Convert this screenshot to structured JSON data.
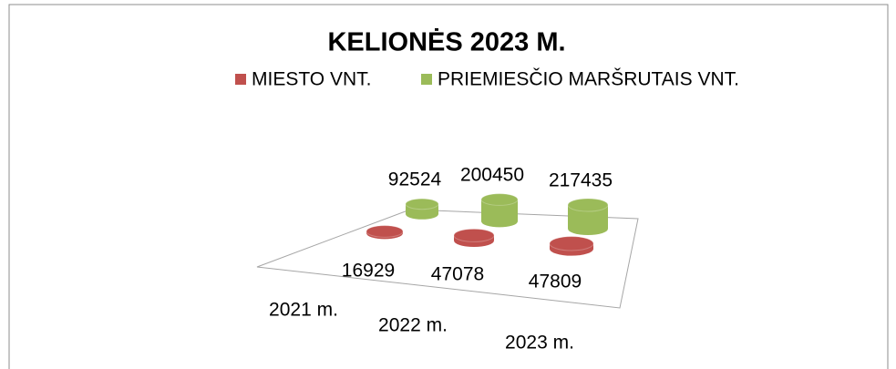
{
  "chart_data": {
    "type": "bar3d",
    "title": "KELIONĖS 2023 M.",
    "categories": [
      "2021 m.",
      "2022 m.",
      "2023 m."
    ],
    "series": [
      {
        "name": "MIESTO VNT.",
        "color": "#c0504d",
        "values": [
          16929,
          47078,
          47809
        ]
      },
      {
        "name": "PRIEMIESČIO MARŠRUTAIS VNT.",
        "color": "#9bbb59",
        "values": [
          92524,
          200450,
          217435
        ]
      }
    ],
    "legend": "top"
  }
}
